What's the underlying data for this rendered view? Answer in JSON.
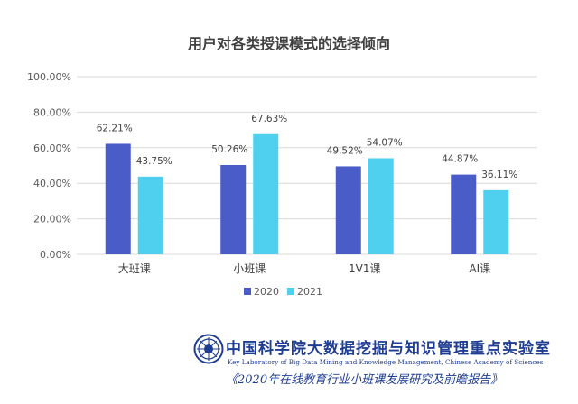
{
  "chart_data": {
    "type": "bar",
    "title": "用户对各类授课模式的选择倾向",
    "categories": [
      "大班课",
      "小班课",
      "1V1课",
      "AI课"
    ],
    "series": [
      {
        "name": "2020",
        "values": [
          62.21,
          50.26,
          49.52,
          44.87
        ],
        "labels": [
          "62.21%",
          "50.26%",
          "49.52%",
          "44.87%"
        ],
        "color": "#4a5cc8"
      },
      {
        "name": "2021",
        "values": [
          43.75,
          67.63,
          54.07,
          36.11
        ],
        "labels": [
          "43.75%",
          "67.63%",
          "54.07%",
          "36.11%"
        ],
        "color": "#4fd0ee"
      }
    ],
    "ylim": [
      0,
      100
    ],
    "yticks": [
      0,
      20,
      40,
      60,
      80,
      100
    ],
    "ytick_labels": [
      "0.00%",
      "20.00%",
      "40.00%",
      "60.00%",
      "80.00%",
      "100.00%"
    ],
    "grid": true,
    "legend_position": "bottom-center",
    "axis_color": "#d9d9d9"
  },
  "footer": {
    "lab_name_cn": "中国科学院大数据挖掘与知识管理重点实验室",
    "lab_name_en": "Key Laboratory of Big Data Mining and Knowledge Management, Chinese Academy of Sciences",
    "report_title": "《2020年在线教育行业小班课发展研究及前瞻报告》",
    "brand_color": "#1f3e93"
  }
}
